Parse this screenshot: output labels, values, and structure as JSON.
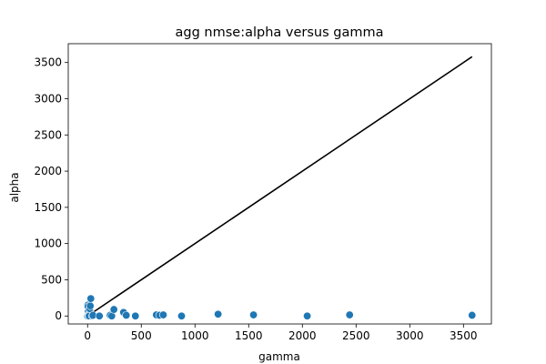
{
  "chart_data": {
    "type": "scatter",
    "title": "agg nmse:alpha versus gamma",
    "xlabel": "gamma",
    "ylabel": "alpha",
    "xlim": [
      -180,
      3760
    ],
    "ylim": [
      -110,
      3760
    ],
    "xticks": [
      0,
      500,
      1000,
      1500,
      2000,
      2500,
      3000,
      3500
    ],
    "yticks": [
      0,
      500,
      1000,
      1500,
      2000,
      2500,
      3000,
      3500
    ],
    "grid": false,
    "marker_color": "#1f77b4",
    "line_color": "#000000",
    "points": [
      {
        "x": 0,
        "y": 0
      },
      {
        "x": 2,
        "y": 150
      },
      {
        "x": 4,
        "y": 130
      },
      {
        "x": 6,
        "y": 60
      },
      {
        "x": 8,
        "y": 20
      },
      {
        "x": 10,
        "y": 5
      },
      {
        "x": 15,
        "y": 0
      },
      {
        "x": 20,
        "y": 100
      },
      {
        "x": 25,
        "y": 140
      },
      {
        "x": 30,
        "y": 240
      },
      {
        "x": 45,
        "y": 0
      },
      {
        "x": 50,
        "y": 10
      },
      {
        "x": 110,
        "y": 0
      },
      {
        "x": 210,
        "y": 10
      },
      {
        "x": 225,
        "y": 0
      },
      {
        "x": 245,
        "y": 90
      },
      {
        "x": 335,
        "y": 50
      },
      {
        "x": 360,
        "y": 10
      },
      {
        "x": 445,
        "y": 0
      },
      {
        "x": 640,
        "y": 15
      },
      {
        "x": 670,
        "y": 10
      },
      {
        "x": 705,
        "y": 15
      },
      {
        "x": 875,
        "y": 0
      },
      {
        "x": 1215,
        "y": 25
      },
      {
        "x": 1545,
        "y": 15
      },
      {
        "x": 2045,
        "y": 0
      },
      {
        "x": 2440,
        "y": 15
      },
      {
        "x": 3580,
        "y": 10
      }
    ],
    "line": {
      "x": [
        0,
        3580
      ],
      "y": [
        0,
        3580
      ]
    }
  }
}
